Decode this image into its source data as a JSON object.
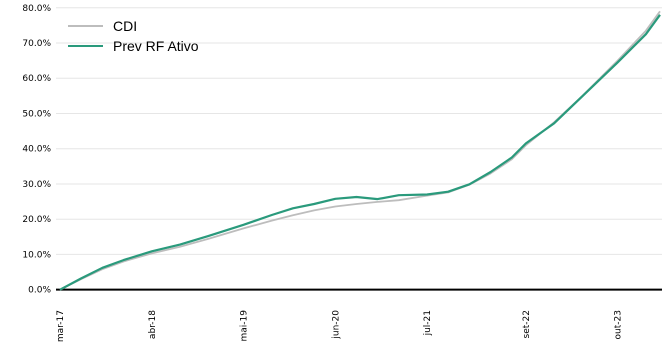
{
  "chart_data": {
    "type": "line",
    "title": "",
    "xlabel": "",
    "ylabel": "",
    "ylim": [
      -3.5,
      80.5
    ],
    "y_ticks": [
      "0.0%",
      "10.0%",
      "20.0%",
      "30.0%",
      "40.0%",
      "50.0%",
      "60.0%",
      "70.0%",
      "80.0%"
    ],
    "x_ticks": [
      "mar-17",
      "abr-18",
      "mai-19",
      "jun-20",
      "jul-21",
      "set-22",
      "out-23"
    ],
    "grid": "horizontal",
    "legend_position": "top-left",
    "x": [
      "2017-03",
      "2017-06",
      "2017-09",
      "2017-12",
      "2018-04",
      "2018-08",
      "2018-12",
      "2019-05",
      "2019-09",
      "2019-12",
      "2020-03",
      "2020-06",
      "2020-09",
      "2020-12",
      "2021-03",
      "2021-07",
      "2021-10",
      "2022-01",
      "2022-04",
      "2022-07",
      "2022-09",
      "2023-01",
      "2023-05",
      "2023-10",
      "2024-02",
      "2024-04"
    ],
    "series": [
      {
        "name": "CDI",
        "color": "#bdbdbd",
        "values": [
          0.0,
          3.0,
          5.8,
          8.0,
          10.3,
          12.2,
          14.4,
          17.4,
          19.6,
          21.1,
          22.5,
          23.6,
          24.3,
          24.9,
          25.4,
          26.7,
          27.6,
          29.8,
          33.0,
          37.0,
          41.0,
          47.5,
          55.0,
          65.0,
          73.5,
          79.0
        ]
      },
      {
        "name": "Prev RF Ativo",
        "color": "#2a9a7c",
        "values": [
          0.0,
          3.2,
          6.2,
          8.4,
          10.9,
          12.8,
          15.2,
          18.4,
          21.2,
          23.1,
          24.3,
          25.8,
          26.3,
          25.7,
          26.8,
          27.0,
          27.8,
          29.9,
          33.4,
          37.5,
          41.5,
          47.2,
          54.9,
          64.5,
          72.5,
          78.0
        ]
      }
    ],
    "zero_line_color": "#000000"
  }
}
